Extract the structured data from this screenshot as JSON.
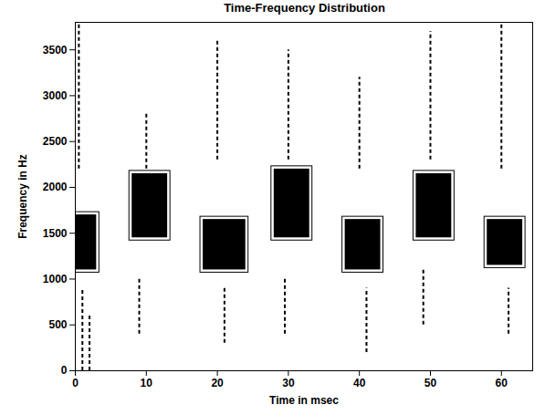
{
  "chart_data": {
    "type": "contour",
    "title": "Time-Frequency Distribution",
    "x_label": "Time in msec",
    "y_label": "Frequency in Hz",
    "xlim": [
      0,
      64.4
    ],
    "xticks": [
      0,
      10,
      20,
      30,
      40,
      50,
      60
    ],
    "ylim": [
      0,
      3800
    ],
    "yticks": [
      0,
      500,
      1000,
      1500,
      2000,
      2500,
      3000,
      3500
    ],
    "color": "#000000",
    "grid": false,
    "bursts": [
      {
        "t0": 0,
        "t1": 3,
        "f0": 1100,
        "f1": 1700
      },
      {
        "t0": 8,
        "t1": 13,
        "f0": 1450,
        "f1": 2150
      },
      {
        "t0": 18,
        "t1": 24,
        "f0": 1100,
        "f1": 1650
      },
      {
        "t0": 28,
        "t1": 33,
        "f0": 1450,
        "f1": 2200
      },
      {
        "t0": 38,
        "t1": 43,
        "f0": 1100,
        "f1": 1650
      },
      {
        "t0": 48,
        "t1": 53,
        "f0": 1450,
        "f1": 2150
      },
      {
        "t0": 58,
        "t1": 63,
        "f0": 1150,
        "f1": 1650
      }
    ],
    "streaks": [
      {
        "t": 0.5,
        "f0": 2200,
        "f1": 3800
      },
      {
        "t": 1,
        "f0": 0,
        "f1": 900
      },
      {
        "t": 2,
        "f0": 0,
        "f1": 600
      },
      {
        "t": 9,
        "f0": 400,
        "f1": 1000
      },
      {
        "t": 10,
        "f0": 2200,
        "f1": 2800
      },
      {
        "t": 20,
        "f0": 2300,
        "f1": 3600
      },
      {
        "t": 21,
        "f0": 300,
        "f1": 900
      },
      {
        "t": 29.5,
        "f0": 400,
        "f1": 1000
      },
      {
        "t": 30,
        "f0": 2300,
        "f1": 3500
      },
      {
        "t": 40,
        "f0": 2200,
        "f1": 3200
      },
      {
        "t": 41,
        "f0": 200,
        "f1": 900
      },
      {
        "t": 49,
        "f0": 500,
        "f1": 1100
      },
      {
        "t": 50,
        "f0": 2300,
        "f1": 3700
      },
      {
        "t": 60,
        "f0": 2200,
        "f1": 3800
      },
      {
        "t": 61,
        "f0": 400,
        "f1": 900
      }
    ]
  }
}
